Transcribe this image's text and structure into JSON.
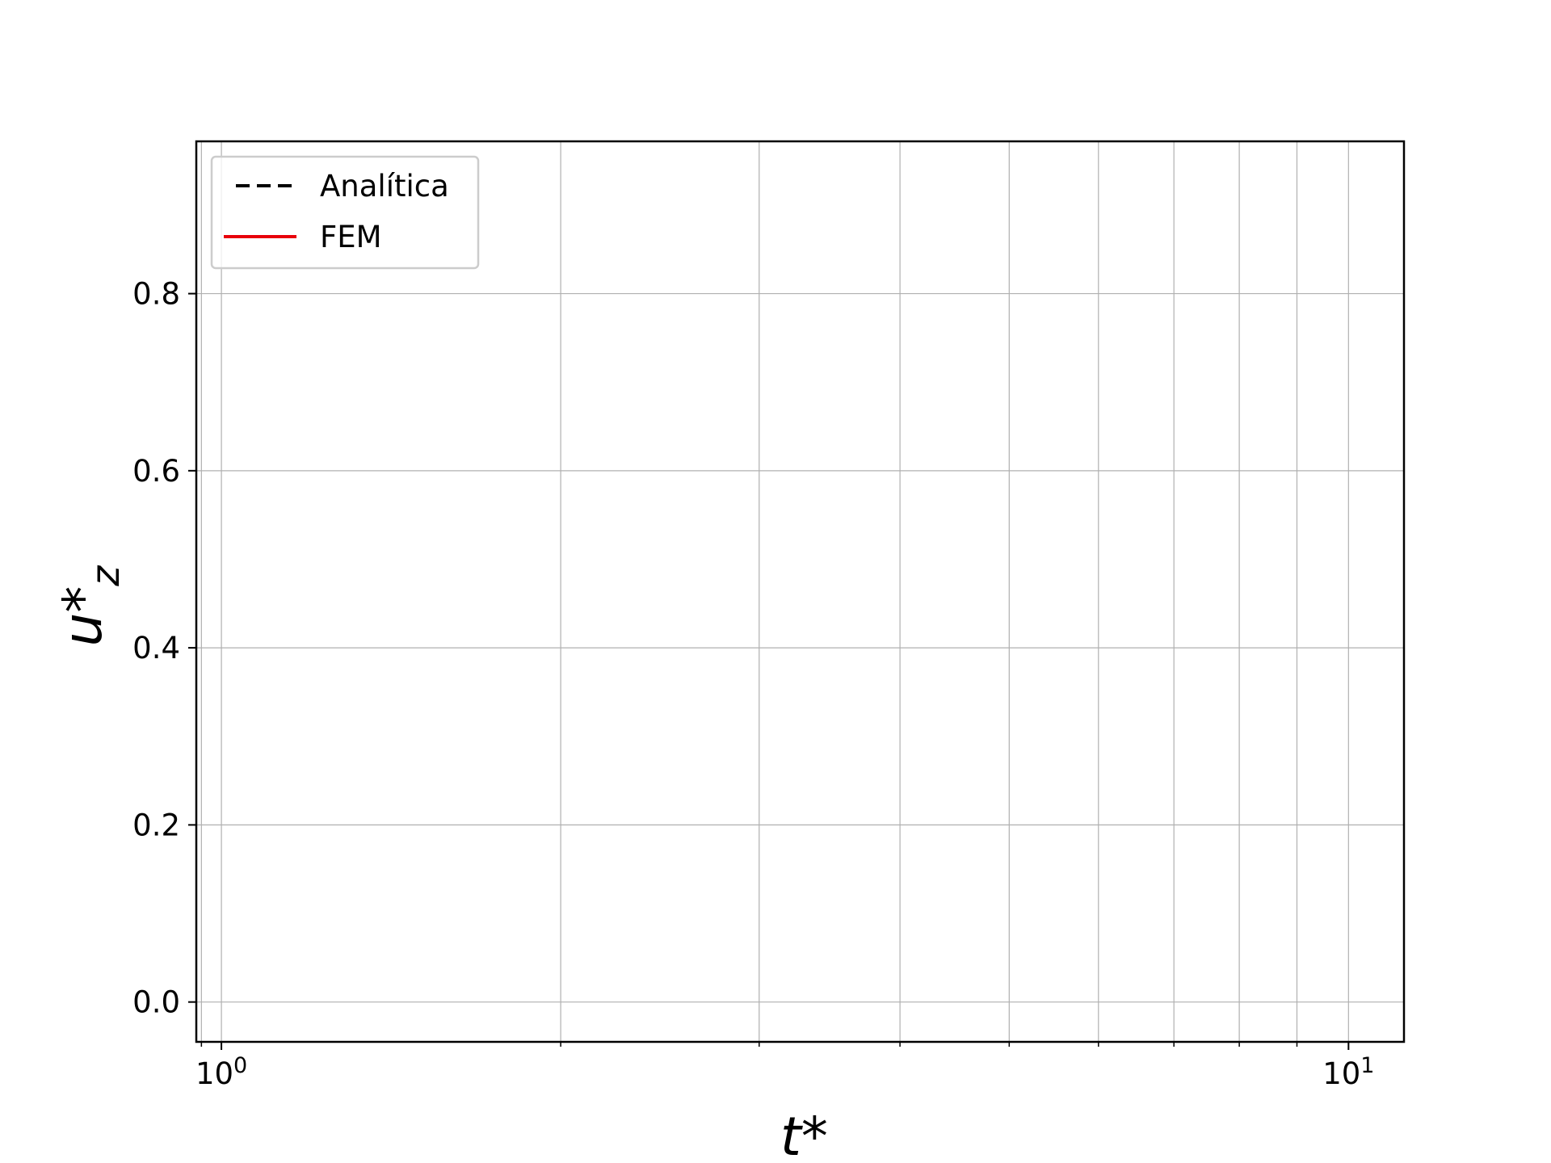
{
  "chart_data": {
    "type": "line",
    "title": "",
    "xlabel": "t*",
    "ylabel": "u*",
    "ylabel_sub": "z",
    "xscale": "log",
    "xlim": [
      0.95,
      11.2
    ],
    "ylim": [
      -0.045,
      0.972
    ],
    "grid": true,
    "legend_position": "top-left",
    "x_ticks": [
      {
        "value": 1,
        "base": "10",
        "exp": "0"
      },
      {
        "value": 10,
        "base": "10",
        "exp": "1"
      }
    ],
    "x_minor_ticks": [
      2,
      3,
      4,
      5,
      6,
      7,
      8,
      9
    ],
    "y_ticks": [
      {
        "value": 0.0,
        "label": "0.0"
      },
      {
        "value": 0.2,
        "label": "0.2"
      },
      {
        "value": 0.4,
        "label": "0.4"
      },
      {
        "value": 0.6,
        "label": "0.6"
      },
      {
        "value": 0.8,
        "label": "0.8"
      }
    ],
    "series": [
      {
        "name": "Analítica",
        "color": "#000000",
        "style": "dashed",
        "x": [],
        "y": []
      },
      {
        "name": "FEM",
        "color": "#e8000b",
        "style": "solid",
        "x": [],
        "y": []
      }
    ]
  }
}
